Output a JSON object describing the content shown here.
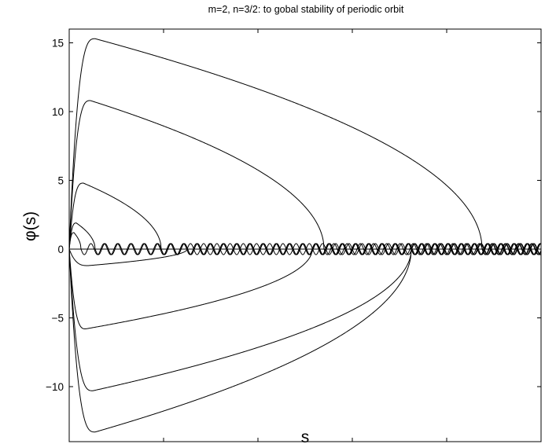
{
  "chart_data": {
    "type": "line",
    "title": "m=2, n=3/2: to gobal stability of periodic orbit",
    "xlabel": "s",
    "ylabel": "φ(s)",
    "xlim": [
      0,
      100
    ],
    "ylim": [
      -14,
      16
    ],
    "xticks": [
      0,
      20,
      40,
      60,
      80,
      100
    ],
    "yticks": [
      -10,
      -5,
      0,
      5,
      10,
      15
    ],
    "grid": false,
    "line_color": "#000000",
    "limit_cycle": {
      "amplitude": 0.4,
      "period": 2.8
    },
    "series": [
      {
        "peak": 15.3,
        "peak_at": 5.5,
        "trough": -13.3,
        "trough_at": 5.5,
        "fold_at": 87.5,
        "close_at": 72.5,
        "tail_end": 100
      },
      {
        "peak": 10.8,
        "peak_at": 4.5,
        "trough": -10.3,
        "trough_at": 5.0,
        "fold_at": 54.0,
        "close_at": 72.5,
        "tail_end": 100
      },
      {
        "peak": 4.8,
        "peak_at": 3.0,
        "trough": -5.8,
        "trough_at": 3.5,
        "fold_at": 19.5,
        "close_at": 51.5,
        "tail_end": 100
      },
      {
        "peak": 1.9,
        "peak_at": 1.5,
        "trough": -1.2,
        "trough_at": 4.0,
        "fold_at": 5.5,
        "close_at": 25.0,
        "tail_end": 100
      },
      {
        "peak": 1.2,
        "peak_at": 1.0,
        "trough": 0,
        "trough_at": 0,
        "fold_at": 2.5,
        "close_at": 3.0,
        "tail_end": 100
      }
    ],
    "baseline": {
      "y": 0,
      "x_range": [
        0,
        100
      ]
    }
  }
}
